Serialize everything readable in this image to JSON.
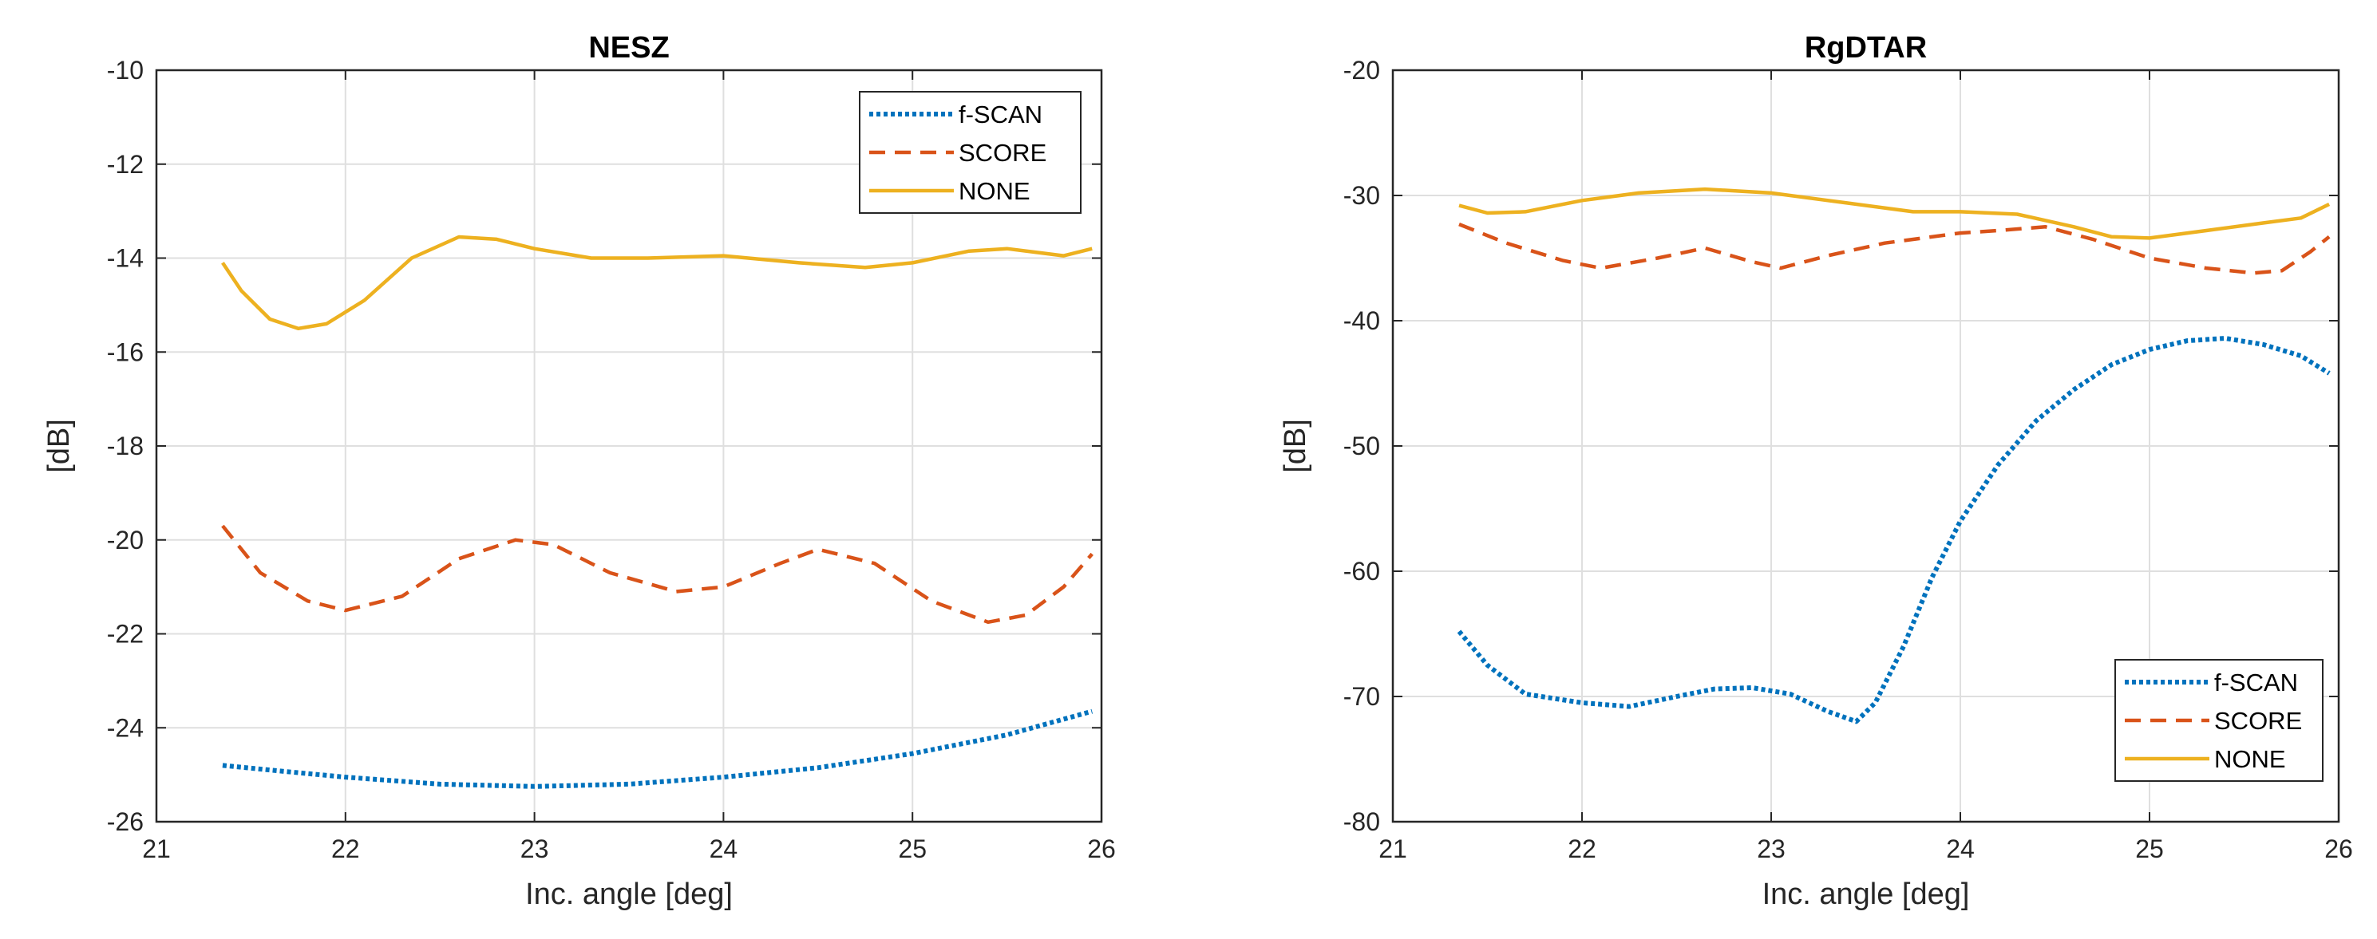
{
  "chart_data": [
    {
      "type": "line",
      "title": "NESZ",
      "xlabel": "Inc. angle [deg]",
      "ylabel": "[dB]",
      "xlim": [
        21,
        26
      ],
      "ylim": [
        -26,
        -10
      ],
      "xticks": [
        21,
        22,
        23,
        24,
        25,
        26
      ],
      "yticks": [
        -26,
        -24,
        -22,
        -20,
        -18,
        -16,
        -14,
        -12,
        -10
      ],
      "grid": true,
      "legend": "top-right",
      "series": [
        {
          "name": "f-SCAN",
          "color": "#0072BD",
          "dash": "dotted",
          "x": [
            21.35,
            21.6,
            22.0,
            22.5,
            23.0,
            23.5,
            24.0,
            24.5,
            25.0,
            25.5,
            25.95
          ],
          "y": [
            -24.8,
            -24.9,
            -25.05,
            -25.2,
            -25.25,
            -25.2,
            -25.05,
            -24.85,
            -24.55,
            -24.15,
            -23.65
          ]
        },
        {
          "name": "SCORE",
          "color": "#D95319",
          "dash": "dashed",
          "x": [
            21.35,
            21.55,
            21.8,
            22.0,
            22.3,
            22.6,
            22.9,
            23.1,
            23.4,
            23.75,
            24.0,
            24.3,
            24.5,
            24.8,
            25.1,
            25.4,
            25.6,
            25.8,
            25.95
          ],
          "y": [
            -19.7,
            -20.7,
            -21.3,
            -21.5,
            -21.2,
            -20.4,
            -20.0,
            -20.1,
            -20.7,
            -21.1,
            -21.0,
            -20.5,
            -20.2,
            -20.5,
            -21.3,
            -21.75,
            -21.6,
            -21.0,
            -20.3
          ]
        },
        {
          "name": "NONE",
          "color": "#EDB120",
          "dash": "solid",
          "x": [
            21.35,
            21.45,
            21.6,
            21.75,
            21.9,
            22.1,
            22.35,
            22.6,
            22.8,
            23.0,
            23.3,
            23.6,
            24.0,
            24.4,
            24.75,
            25.0,
            25.3,
            25.5,
            25.7,
            25.8,
            25.95
          ],
          "y": [
            -14.1,
            -14.7,
            -15.3,
            -15.5,
            -15.4,
            -14.9,
            -14.0,
            -13.55,
            -13.6,
            -13.8,
            -14.0,
            -14.0,
            -13.95,
            -14.1,
            -14.2,
            -14.1,
            -13.85,
            -13.8,
            -13.9,
            -13.95,
            -13.8
          ]
        }
      ]
    },
    {
      "type": "line",
      "title": "RgDTAR",
      "xlabel": "Inc. angle [deg]",
      "ylabel": "[dB]",
      "xlim": [
        21,
        26
      ],
      "ylim": [
        -80,
        -20
      ],
      "xticks": [
        21,
        22,
        23,
        24,
        25,
        26
      ],
      "yticks": [
        -80,
        -70,
        -60,
        -50,
        -40,
        -30,
        -20
      ],
      "grid": true,
      "legend": "bottom-right",
      "series": [
        {
          "name": "f-SCAN",
          "color": "#0072BD",
          "dash": "dotted",
          "x": [
            21.35,
            21.5,
            21.7,
            22.0,
            22.25,
            22.5,
            22.7,
            22.9,
            23.1,
            23.3,
            23.45,
            23.55,
            23.7,
            23.85,
            24.0,
            24.2,
            24.4,
            24.6,
            24.8,
            25.0,
            25.2,
            25.4,
            25.6,
            25.8,
            25.95
          ],
          "y": [
            -64.8,
            -67.5,
            -69.8,
            -70.5,
            -70.8,
            -70.0,
            -69.4,
            -69.3,
            -69.8,
            -71.2,
            -72.0,
            -70.5,
            -66.0,
            -60.5,
            -56.0,
            -51.5,
            -48.0,
            -45.5,
            -43.5,
            -42.3,
            -41.6,
            -41.4,
            -41.9,
            -42.8,
            -44.2
          ]
        },
        {
          "name": "SCORE",
          "color": "#D95319",
          "dash": "dashed",
          "x": [
            21.35,
            21.6,
            21.9,
            22.1,
            22.4,
            22.65,
            22.9,
            23.05,
            23.3,
            23.6,
            24.0,
            24.2,
            24.45,
            24.7,
            25.0,
            25.3,
            25.55,
            25.7,
            25.85,
            25.95
          ],
          "y": [
            -32.3,
            -33.8,
            -35.2,
            -35.8,
            -35.0,
            -34.2,
            -35.3,
            -35.8,
            -34.8,
            -33.8,
            -33.0,
            -32.8,
            -32.5,
            -33.5,
            -35.0,
            -35.8,
            -36.2,
            -36.0,
            -34.5,
            -33.3
          ]
        },
        {
          "name": "NONE",
          "color": "#EDB120",
          "dash": "solid",
          "x": [
            21.35,
            21.5,
            21.7,
            22.0,
            22.3,
            22.65,
            23.0,
            23.4,
            23.75,
            24.0,
            24.3,
            24.6,
            24.8,
            25.0,
            25.3,
            25.6,
            25.8,
            25.95
          ],
          "y": [
            -30.8,
            -31.4,
            -31.3,
            -30.4,
            -29.8,
            -29.5,
            -29.8,
            -30.6,
            -31.3,
            -31.3,
            -31.5,
            -32.5,
            -33.3,
            -33.4,
            -32.8,
            -32.2,
            -31.8,
            -30.7
          ]
        }
      ]
    }
  ]
}
